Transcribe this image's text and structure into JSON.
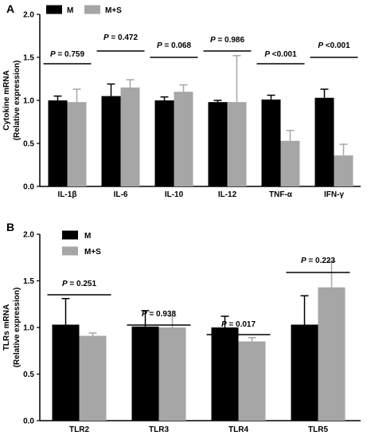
{
  "chart_data": [
    {
      "panel": "A",
      "type": "bar",
      "ylabel_line1": "Cytokine mRNA",
      "ylabel_line2": "(Relative expression)",
      "ylim": [
        0,
        2.0
      ],
      "yticks": [
        "0.0",
        "0.5",
        "1.0",
        "1.5",
        "2.0"
      ],
      "categories": [
        "IL-1β",
        "IL-6",
        "IL-10",
        "IL-12",
        "TNF-α",
        "IFN-γ"
      ],
      "series": [
        {
          "name": "M",
          "color": "#000000",
          "values": [
            1.0,
            1.05,
            1.0,
            0.98,
            1.01,
            1.03
          ],
          "errors": [
            0.05,
            0.14,
            0.04,
            0.02,
            0.05,
            0.1
          ]
        },
        {
          "name": "M+S",
          "color": "#a6a6a6",
          "values": [
            0.98,
            1.15,
            1.1,
            0.98,
            0.53,
            0.36
          ],
          "errors": [
            0.15,
            0.09,
            0.08,
            0.54,
            0.12,
            0.13
          ]
        }
      ],
      "pvalues": [
        {
          "p": "P",
          "rest": " = 0.759"
        },
        {
          "p": "P",
          "rest": " = 0.472"
        },
        {
          "p": "P",
          "rest": " = 0.068"
        },
        {
          "p": "P",
          "rest": " = 0.986"
        },
        {
          "p": "P",
          "rest": " <0.001"
        },
        {
          "p": "P",
          "rest": " <0.001"
        }
      ],
      "legend_position": "top-left"
    },
    {
      "panel": "B",
      "type": "bar",
      "ylabel_line1": "TLRs mRNA",
      "ylabel_line2": "(Relative expression)",
      "ylim": [
        0,
        2.0
      ],
      "yticks": [
        "0.0",
        "0.5",
        "1.0",
        "1.5",
        "2.0"
      ],
      "categories": [
        "TLR2",
        "TLR3",
        "TLR4",
        "TLR5"
      ],
      "series": [
        {
          "name": "M",
          "color": "#000000",
          "values": [
            1.03,
            1.01,
            1.0,
            1.03
          ],
          "errors": [
            0.28,
            0.17,
            0.12,
            0.31
          ]
        },
        {
          "name": "M+S",
          "color": "#a6a6a6",
          "values": [
            0.91,
            1.0,
            0.85,
            1.43
          ],
          "errors": [
            0.03,
            0.12,
            0.04,
            0.28
          ]
        }
      ],
      "pvalues": [
        {
          "p": "P",
          "rest": " = 0.251"
        },
        {
          "p": "P",
          "rest": " = 0.938"
        },
        {
          "p": "P",
          "rest": " = 0.017"
        },
        {
          "p": "P",
          "rest": " = 0.223"
        }
      ],
      "legend_position": "top-left"
    }
  ]
}
